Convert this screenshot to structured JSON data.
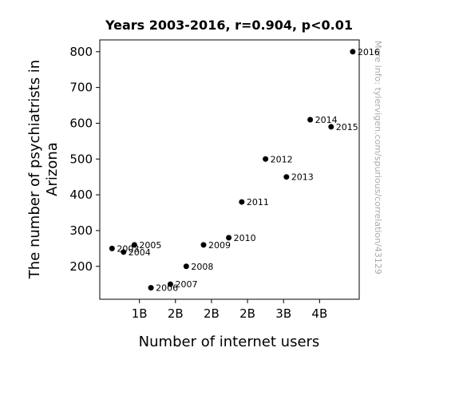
{
  "chart_data": {
    "type": "scatter",
    "title": "Years 2003-2016, r=0.904, p<0.01",
    "xlabel": "Number of internet users",
    "ylabel_lines": [
      "The number of psychiatrists in",
      "Arizona"
    ],
    "xlim": [
      0.45,
      4.05
    ],
    "ylim": [
      108,
      833
    ],
    "x_ticks": [
      {
        "value": 1.0,
        "label": "1B"
      },
      {
        "value": 1.5,
        "label": "2B"
      },
      {
        "value": 2.0,
        "label": "2B"
      },
      {
        "value": 2.5,
        "label": "2B"
      },
      {
        "value": 3.0,
        "label": "3B"
      },
      {
        "value": 3.5,
        "label": "4B"
      }
    ],
    "y_ticks": [
      200,
      300,
      400,
      500,
      600,
      700,
      800
    ],
    "point_color": "#000000",
    "points": [
      {
        "label": "2003",
        "x": 0.62,
        "y": 250
      },
      {
        "label": "2004",
        "x": 0.78,
        "y": 240
      },
      {
        "label": "2005",
        "x": 0.93,
        "y": 260
      },
      {
        "label": "2006",
        "x": 1.16,
        "y": 140
      },
      {
        "label": "2007",
        "x": 1.43,
        "y": 150
      },
      {
        "label": "2008",
        "x": 1.65,
        "y": 200
      },
      {
        "label": "2009",
        "x": 1.89,
        "y": 260
      },
      {
        "label": "2010",
        "x": 2.24,
        "y": 280
      },
      {
        "label": "2011",
        "x": 2.42,
        "y": 380
      },
      {
        "label": "2012",
        "x": 2.75,
        "y": 500
      },
      {
        "label": "2013",
        "x": 3.04,
        "y": 450
      },
      {
        "label": "2014",
        "x": 3.37,
        "y": 610
      },
      {
        "label": "2015",
        "x": 3.66,
        "y": 590
      },
      {
        "label": "2016",
        "x": 3.96,
        "y": 800
      }
    ],
    "grid": false,
    "legend": "none"
  },
  "watermark": "More info: tylervigen.com/spurious/correlation/43129"
}
